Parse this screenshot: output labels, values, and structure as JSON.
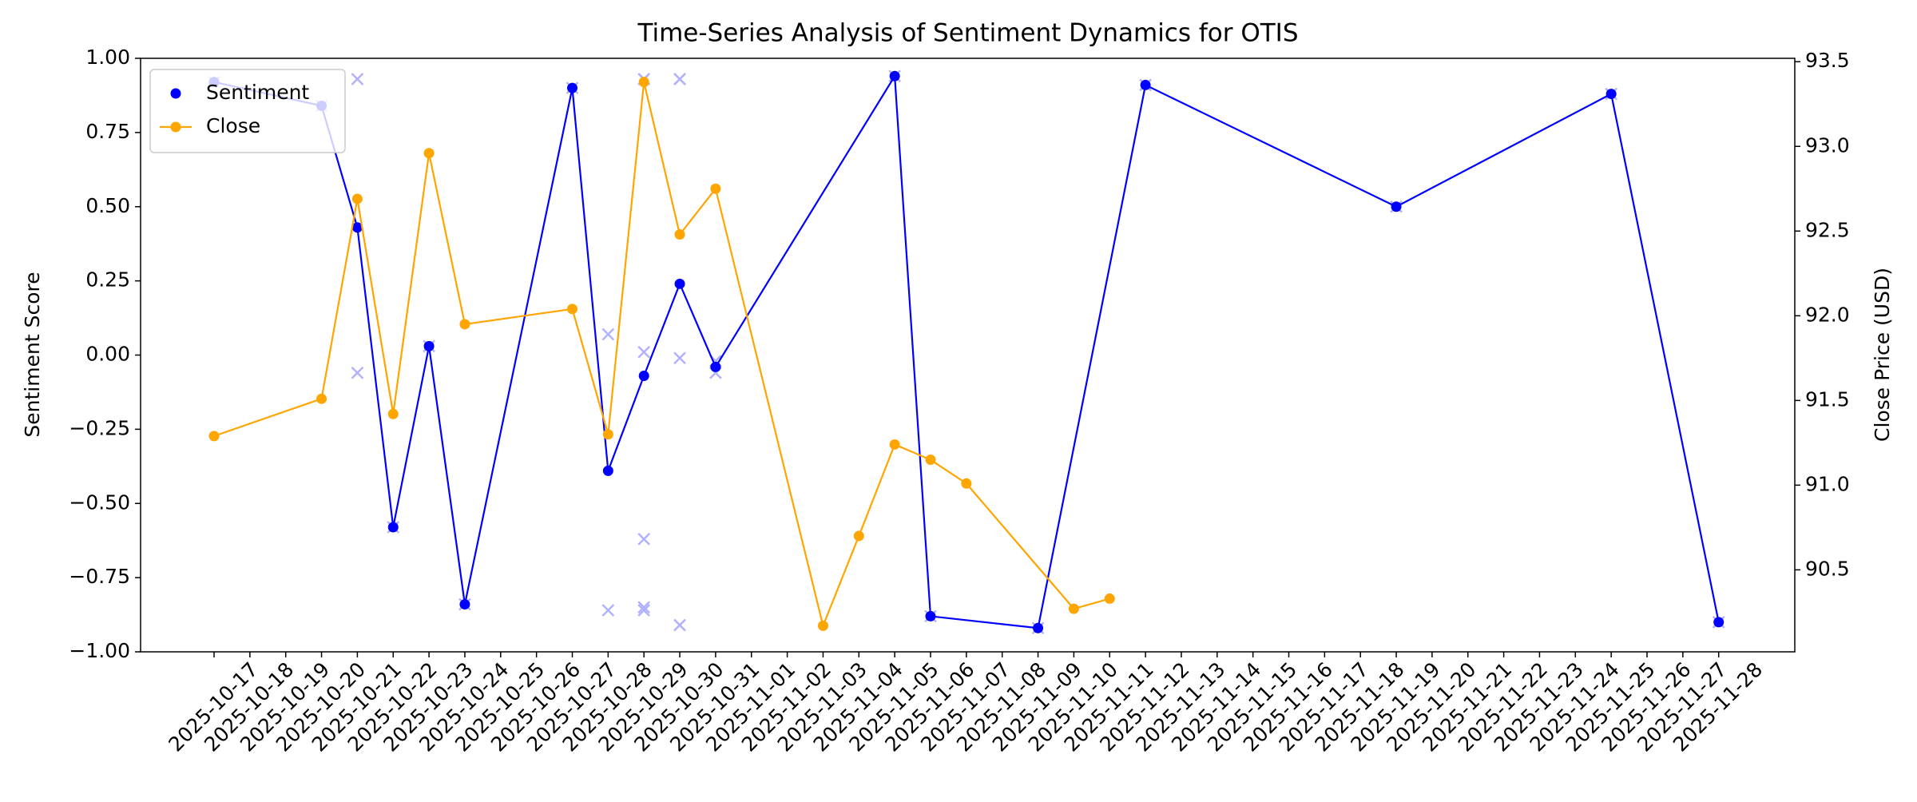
{
  "chart_data": {
    "type": "line",
    "title": "Time-Series Analysis of Sentiment Dynamics for OTIS",
    "ylabel": "Sentiment Score",
    "y2label": "Close Price (USD)",
    "categories": [
      "2025-10-17",
      "2025-10-18",
      "2025-10-19",
      "2025-10-20",
      "2025-10-21",
      "2025-10-22",
      "2025-10-23",
      "2025-10-24",
      "2025-10-25",
      "2025-10-26",
      "2025-10-27",
      "2025-10-28",
      "2025-10-29",
      "2025-10-30",
      "2025-10-31",
      "2025-11-01",
      "2025-11-02",
      "2025-11-03",
      "2025-11-04",
      "2025-11-05",
      "2025-11-06",
      "2025-11-07",
      "2025-11-08",
      "2025-11-09",
      "2025-11-10",
      "2025-11-11",
      "2025-11-12",
      "2025-11-13",
      "2025-11-14",
      "2025-11-15",
      "2025-11-16",
      "2025-11-17",
      "2025-11-18",
      "2025-11-19",
      "2025-11-20",
      "2025-11-21",
      "2025-11-22",
      "2025-11-23",
      "2025-11-24",
      "2025-11-25",
      "2025-11-26",
      "2025-11-27",
      "2025-11-28"
    ],
    "ylim": [
      -1,
      1
    ],
    "yticks": [
      {
        "value": -1,
        "label": "−1.00"
      },
      {
        "value": -0.75,
        "label": "−0.75"
      },
      {
        "value": -0.5,
        "label": "−0.50"
      },
      {
        "value": -0.25,
        "label": "−0.25"
      },
      {
        "value": 0,
        "label": "0.00"
      },
      {
        "value": 0.25,
        "label": "0.25"
      },
      {
        "value": 0.5,
        "label": "0.50"
      },
      {
        "value": 0.75,
        "label": "0.75"
      },
      {
        "value": 1,
        "label": "1.00"
      }
    ],
    "y2lim": [
      90.016,
      93.52
    ],
    "y2ticks": [
      90.5,
      {
        "value": 91,
        "label": "91.0"
      },
      91.5,
      {
        "value": 92,
        "label": "92.0"
      },
      92.5,
      {
        "value": 93,
        "label": "93.0"
      },
      93.5
    ],
    "legend": "upper left",
    "series": [
      {
        "name": "Sentiment",
        "color": "#0000ff",
        "legend_marker_only": true,
        "x": [
          "2025-10-17",
          "2025-10-20",
          "2025-10-21",
          "2025-10-22",
          "2025-10-23",
          "2025-10-24",
          "2025-10-27",
          "2025-10-28",
          "2025-10-29",
          "2025-10-30",
          "2025-10-31",
          "2025-11-05",
          "2025-11-06",
          "2025-11-09",
          "2025-11-12",
          "2025-11-19",
          "2025-11-25",
          "2025-11-28"
        ],
        "values": [
          0.92,
          0.84,
          0.43,
          -0.58,
          0.03,
          -0.84,
          0.9,
          -0.39,
          -0.07,
          0.24,
          -0.04,
          0.94,
          -0.88,
          -0.92,
          0.91,
          0.5,
          0.88,
          -0.9
        ]
      },
      {
        "name": "Close",
        "color": "#ffa500",
        "axis": "y2",
        "legend_marker_only": false,
        "x": [
          "2025-10-17",
          "2025-10-20",
          "2025-10-21",
          "2025-10-22",
          "2025-10-23",
          "2025-10-24",
          "2025-10-27",
          "2025-10-28",
          "2025-10-29",
          "2025-10-30",
          "2025-10-31",
          "2025-11-03",
          "2025-11-04",
          "2025-11-05",
          "2025-11-06",
          "2025-11-07",
          "2025-11-10",
          "2025-11-11"
        ],
        "values": [
          91.29,
          91.51,
          92.69,
          91.42,
          92.96,
          91.95,
          92.04,
          91.3,
          93.38,
          92.48,
          92.75,
          90.17,
          90.7,
          91.24,
          91.15,
          91.01,
          90.27,
          90.33
        ]
      }
    ],
    "raw_points": {
      "color": "#0000ff",
      "alpha": 0.3,
      "x": [
        "2025-10-17",
        "2025-10-20",
        "2025-10-21",
        "2025-10-21",
        "2025-10-22",
        "2025-10-23",
        "2025-10-24",
        "2025-10-27",
        "2025-10-28",
        "2025-10-28",
        "2025-10-29",
        "2025-10-29",
        "2025-10-29",
        "2025-10-29",
        "2025-10-29",
        "2025-10-29",
        "2025-10-30",
        "2025-10-30",
        "2025-10-30",
        "2025-10-30",
        "2025-10-31",
        "2025-10-31",
        "2025-11-05",
        "2025-11-06",
        "2025-11-09",
        "2025-11-12",
        "2025-11-19",
        "2025-11-25",
        "2025-11-28"
      ],
      "values": [
        0.92,
        0.84,
        0.93,
        -0.06,
        -0.58,
        0.03,
        -0.84,
        0.9,
        0.07,
        -0.86,
        0.93,
        0.93,
        0.01,
        -0.62,
        -0.85,
        -0.86,
        0.93,
        0.93,
        -0.01,
        -0.91,
        -0.06,
        -0.02,
        0.94,
        -0.88,
        -0.92,
        0.91,
        0.5,
        0.88,
        -0.9
      ]
    }
  }
}
